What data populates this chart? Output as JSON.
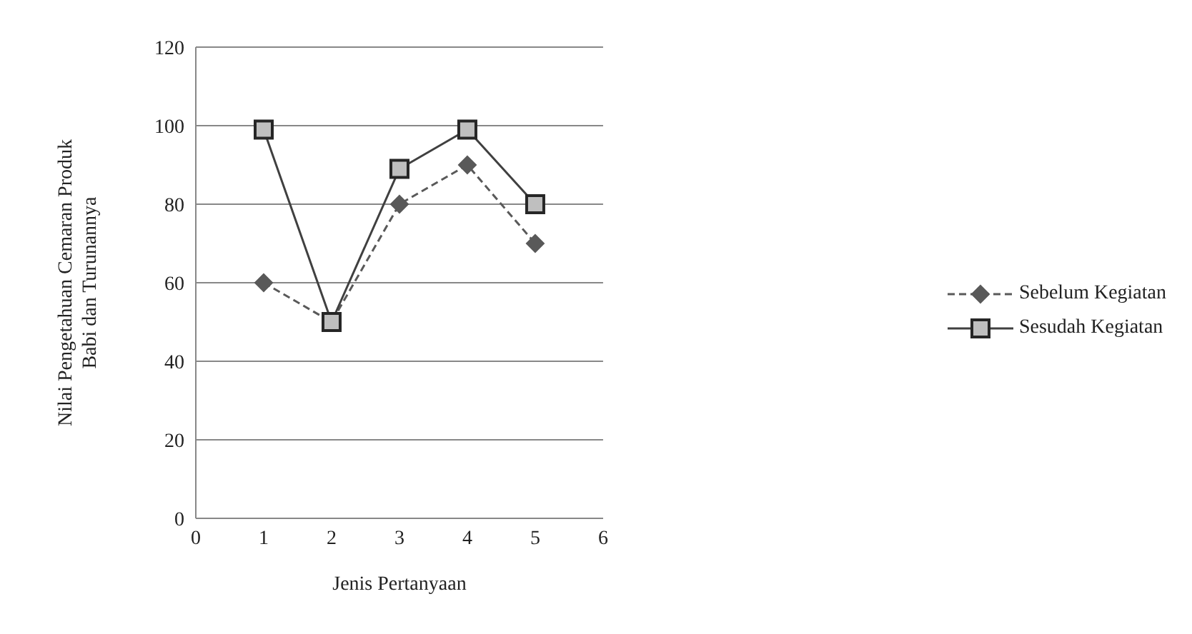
{
  "chart_data": {
    "type": "line",
    "xlabel": "Jenis Pertanyaan",
    "ylabel": "Nilai Pengetahuan  Cemaran  Produk\nBabi dan Turunannya",
    "x": [
      1,
      2,
      3,
      4,
      5
    ],
    "series": [
      {
        "name": "Sebelum Kegiatan",
        "color": "#595959",
        "values": [
          60,
          50,
          80,
          90,
          70
        ],
        "marker": "diamond",
        "line_style": "dashed"
      },
      {
        "name": "Sesudah Kegiatan",
        "color": "#404040",
        "values": [
          99,
          50,
          89,
          99,
          80
        ],
        "marker": "square",
        "line_style": "solid"
      }
    ],
    "xlim": [
      0,
      6
    ],
    "xticks": [
      0,
      1,
      2,
      3,
      4,
      5,
      6
    ],
    "ylim": [
      0,
      120
    ],
    "yticks": [
      0,
      20,
      40,
      60,
      80,
      100,
      120
    ],
    "grid": "y",
    "legend": "right"
  }
}
